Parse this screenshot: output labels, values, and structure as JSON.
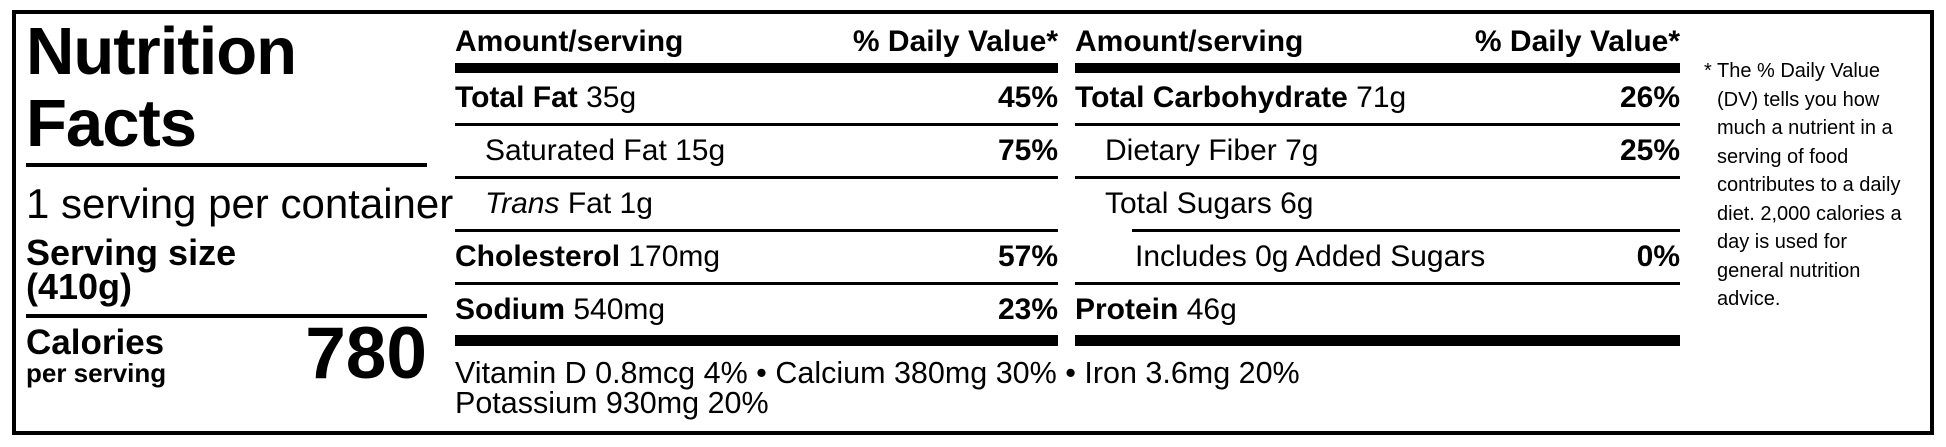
{
  "left_panel": {
    "title_line1": "Nutrition",
    "title_line2": "Facts",
    "servings_per_container": "1 serving per container",
    "serving_size_label": "Serving size",
    "serving_size_value": "(410g)",
    "calories_label": "Calories",
    "calories_sublabel": "per serving",
    "calories_value": "780"
  },
  "table": {
    "col1": {
      "amount_header": "Amount/serving",
      "dv_header": "% Daily Value*",
      "rows": [
        {
          "name": "Total Fat",
          "amount": "35g",
          "dv": "45%"
        },
        {
          "name": "Saturated Fat",
          "amount": "15g",
          "dv": "75%"
        },
        {
          "name_italic": "Trans",
          "name": "Fat",
          "amount": "1g",
          "dv": ""
        },
        {
          "name": "Cholesterol",
          "amount": "170mg",
          "dv": "57%"
        },
        {
          "name": "Sodium",
          "amount": "540mg",
          "dv": "23%"
        }
      ]
    },
    "col2": {
      "amount_header": "Amount/serving",
      "dv_header": "% Daily Value*",
      "rows": [
        {
          "name": "Total Carbohydrate",
          "amount": "71g",
          "dv": "26%"
        },
        {
          "name": "Dietary Fiber",
          "amount": "7g",
          "dv": "25%"
        },
        {
          "name": "Total Sugars",
          "amount": "6g",
          "dv": ""
        },
        {
          "name": "Includes 0g Added Sugars",
          "amount": "",
          "dv": "0%"
        },
        {
          "name": "Protein",
          "amount": "46g",
          "dv": ""
        }
      ]
    }
  },
  "micronutrients": {
    "line1": "Vitamin D 0.8mcg 4% • Calcium 380mg 30% • Iron 3.6mg 20%",
    "line2": "Potassium 930mg 20%"
  },
  "footnote": {
    "marker": "*",
    "text": "The % Daily Value (DV) tells you how much a nutrient in a serving of food contributes to a daily diet. 2,000 calories a day is used for general nutrition advice."
  },
  "colors": {
    "ink": "#000000",
    "background": "#ffffff"
  }
}
